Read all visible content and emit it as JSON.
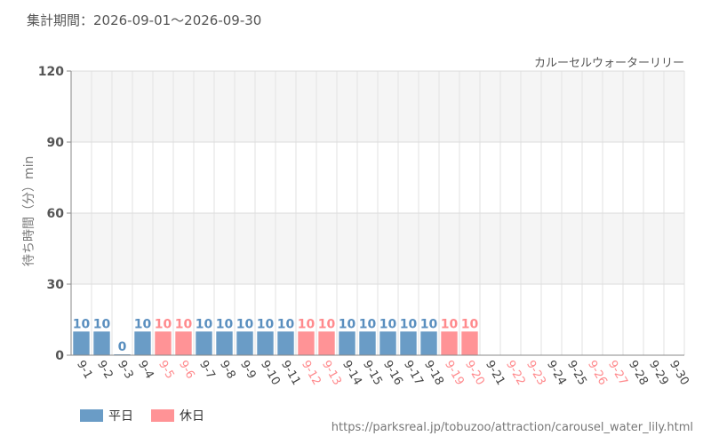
{
  "header": {
    "period": "集計期間：2026-09-01～2026-09-30",
    "attraction": "カルーセルウォーターリリー"
  },
  "legend": {
    "weekday": "平日",
    "holiday": "休日"
  },
  "footer": {
    "source": "https://parksreal.jp/tobuzoo/attraction/carousel_water_lily.html"
  },
  "colors": {
    "weekday": "#6a9cc6",
    "holiday": "#ff9396",
    "weekday_text": "#5a8fbf",
    "holiday_text": "#ff8a8d"
  },
  "chart_data": {
    "type": "bar",
    "ylabel": "待ち時間（分）min",
    "ylim": [
      0,
      120
    ],
    "yticks": [
      0,
      30,
      60,
      90,
      120
    ],
    "categories": [
      "9-1",
      "9-2",
      "9-3",
      "9-4",
      "9-5",
      "9-6",
      "9-7",
      "9-8",
      "9-9",
      "9-10",
      "9-11",
      "9-12",
      "9-13",
      "9-14",
      "9-15",
      "9-16",
      "9-17",
      "9-18",
      "9-19",
      "9-20",
      "9-21",
      "9-22",
      "9-23",
      "9-24",
      "9-25",
      "9-26",
      "9-27",
      "9-28",
      "9-29",
      "9-30"
    ],
    "values": [
      10,
      10,
      0,
      10,
      10,
      10,
      10,
      10,
      10,
      10,
      10,
      10,
      10,
      10,
      10,
      10,
      10,
      10,
      10,
      10,
      null,
      null,
      null,
      null,
      null,
      null,
      null,
      null,
      null,
      null
    ],
    "day_type": [
      "weekday",
      "weekday",
      "weekday",
      "weekday",
      "holiday",
      "holiday",
      "weekday",
      "weekday",
      "weekday",
      "weekday",
      "weekday",
      "holiday",
      "holiday",
      "weekday",
      "weekday",
      "weekday",
      "weekday",
      "weekday",
      "holiday",
      "holiday",
      "weekday",
      "holiday",
      "holiday",
      "weekday",
      "weekday",
      "holiday",
      "holiday",
      "weekday",
      "weekday",
      "weekday"
    ],
    "grid": true
  }
}
